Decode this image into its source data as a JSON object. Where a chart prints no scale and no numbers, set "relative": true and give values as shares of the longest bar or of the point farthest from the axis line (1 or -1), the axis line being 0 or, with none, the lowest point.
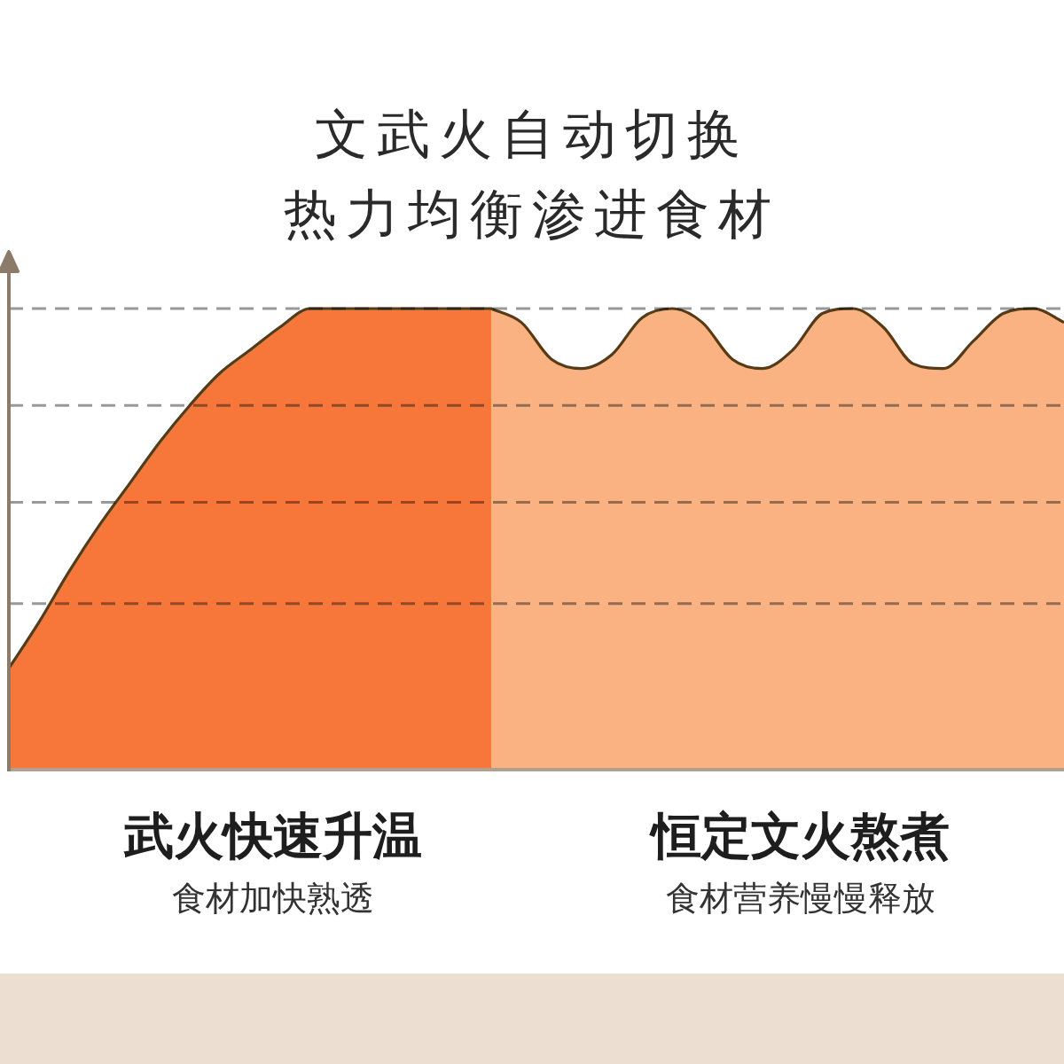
{
  "chart_data": {
    "type": "area",
    "title": "文武火自动切换",
    "subtitle": "热力均衡渗进食材",
    "relative": true,
    "categories": [
      null,
      null,
      null,
      null,
      null,
      null,
      null,
      null,
      null,
      null,
      null,
      null,
      null,
      null,
      null,
      null,
      null,
      null,
      null,
      null,
      null,
      null,
      null,
      null,
      null,
      null,
      null,
      null,
      null,
      null,
      null,
      null,
      null,
      null,
      null,
      null
    ],
    "series": [
      {
        "name": "武火快速升温",
        "color": "#f7763a",
        "values": [
          0.22,
          0.32,
          0.43,
          0.53,
          0.62,
          0.71,
          0.79,
          0.86,
          0.91,
          0.96,
          1,
          1,
          1,
          1,
          1,
          1,
          1,
          null,
          null,
          null,
          null,
          null,
          null,
          null,
          null,
          null,
          null,
          null,
          null,
          null,
          null,
          null,
          null,
          null,
          null,
          null
        ]
      },
      {
        "name": "恒定文火熬煮",
        "color": "#fbb283",
        "values": [
          null,
          null,
          null,
          null,
          null,
          null,
          null,
          null,
          null,
          null,
          null,
          null,
          null,
          null,
          null,
          null,
          1,
          0.97,
          0.89,
          0.87,
          0.9,
          0.98,
          1,
          0.97,
          0.89,
          0.87,
          0.91,
          0.99,
          1,
          0.96,
          0.88,
          0.87,
          0.93,
          0.99,
          1,
          0.97
        ]
      }
    ],
    "ref_lines": [
      {
        "axis": "y",
        "value": 1,
        "color": "#999999",
        "line_style": "dashed"
      },
      {
        "axis": "y",
        "value": 0.79,
        "color": "#999999",
        "line_style": "dashed"
      },
      {
        "axis": "y",
        "value": 0.58,
        "color": "#999999",
        "line_style": "dashed"
      },
      {
        "axis": "y",
        "value": 0.36,
        "color": "#999999",
        "line_style": "dashed"
      }
    ],
    "annotations": [
      "食材加快熟透",
      "食材营养慢慢释放"
    ]
  }
}
